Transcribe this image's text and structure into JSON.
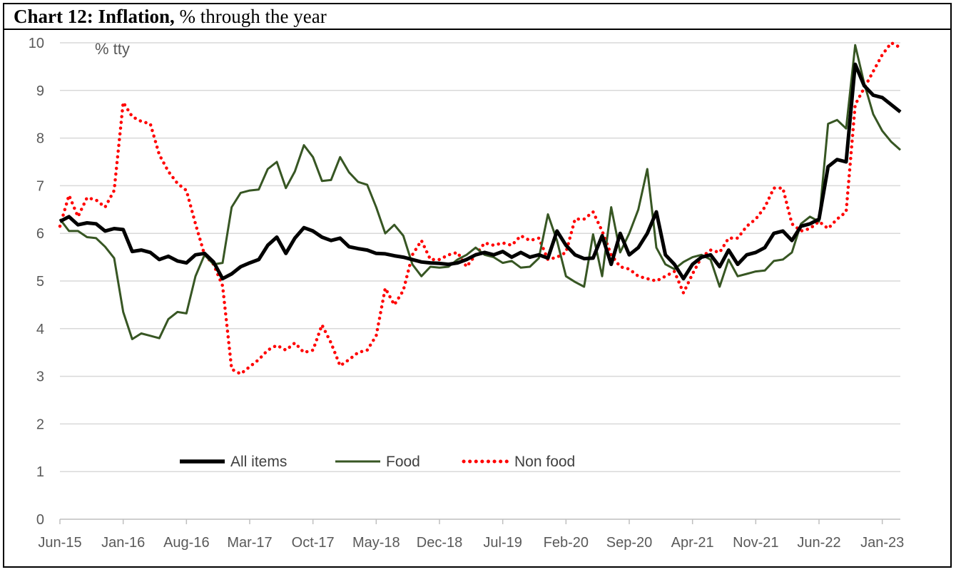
{
  "title": {
    "bold": "Chart 12: Inflation,",
    "rest": " % through the year"
  },
  "chart_data": {
    "type": "line",
    "unit_label": "% tty",
    "ylim": [
      0,
      10
    ],
    "y_ticks": [
      "0",
      "1",
      "2",
      "3",
      "4",
      "5",
      "6",
      "7",
      "8",
      "9",
      "10"
    ],
    "x_tick_labels": [
      "Jun-15",
      "Jan-16",
      "Aug-16",
      "Mar-17",
      "Oct-17",
      "May-18",
      "Dec-18",
      "Jul-19",
      "Feb-20",
      "Sep-20",
      "Apr-21",
      "Nov-21",
      "Jun-22",
      "Jan-23"
    ],
    "x_start": "Jun-15",
    "grid": true,
    "legend_position": "bottom-left",
    "colors": {
      "all_items": "#000000",
      "food": "#375623",
      "non_food": "#ff0000"
    },
    "series": [
      {
        "name": "All items",
        "style": "solid-thick",
        "values": [
          6.25,
          6.35,
          6.18,
          6.22,
          6.2,
          6.05,
          6.1,
          6.08,
          5.62,
          5.65,
          5.6,
          5.45,
          5.52,
          5.42,
          5.38,
          5.55,
          5.58,
          5.4,
          5.05,
          5.15,
          5.3,
          5.38,
          5.45,
          5.75,
          5.92,
          5.58,
          5.9,
          6.12,
          6.05,
          5.92,
          5.85,
          5.9,
          5.72,
          5.68,
          5.65,
          5.58,
          5.57,
          5.53,
          5.5,
          5.45,
          5.4,
          5.38,
          5.37,
          5.35,
          5.38,
          5.45,
          5.55,
          5.6,
          5.55,
          5.62,
          5.5,
          5.6,
          5.5,
          5.55,
          5.48,
          6.05,
          5.75,
          5.55,
          5.47,
          5.48,
          5.95,
          5.35,
          6.0,
          5.55,
          5.7,
          6.0,
          6.45,
          5.55,
          5.35,
          5.05,
          5.35,
          5.5,
          5.55,
          5.3,
          5.65,
          5.35,
          5.55,
          5.6,
          5.7,
          6.0,
          6.05,
          5.85,
          6.15,
          6.2,
          6.3,
          7.4,
          7.55,
          7.5,
          9.55,
          9.1,
          8.9,
          8.85,
          8.7,
          8.55
        ]
      },
      {
        "name": "Food",
        "style": "solid-thin",
        "values": [
          6.3,
          6.05,
          6.05,
          5.92,
          5.9,
          5.72,
          5.48,
          4.35,
          3.78,
          3.9,
          3.85,
          3.8,
          4.2,
          4.35,
          4.32,
          5.1,
          5.55,
          5.35,
          5.38,
          6.55,
          6.85,
          6.9,
          6.92,
          7.35,
          7.5,
          6.95,
          7.3,
          7.85,
          7.6,
          7.1,
          7.12,
          7.6,
          7.28,
          7.08,
          7.02,
          6.55,
          6.0,
          6.18,
          5.95,
          5.35,
          5.1,
          5.3,
          5.28,
          5.3,
          5.45,
          5.55,
          5.7,
          5.55,
          5.5,
          5.38,
          5.42,
          5.28,
          5.3,
          5.48,
          6.4,
          5.85,
          5.1,
          4.98,
          4.88,
          5.98,
          5.1,
          6.55,
          5.6,
          6.0,
          6.5,
          7.35,
          5.7,
          5.35,
          5.25,
          5.4,
          5.5,
          5.55,
          5.45,
          4.88,
          5.45,
          5.1,
          5.15,
          5.2,
          5.22,
          5.42,
          5.45,
          5.6,
          6.2,
          6.35,
          6.25,
          8.3,
          8.38,
          8.2,
          9.95,
          9.15,
          8.5,
          8.15,
          7.92,
          7.75
        ]
      },
      {
        "name": "Non food",
        "style": "dotted",
        "values": [
          6.15,
          6.8,
          6.35,
          6.75,
          6.7,
          6.55,
          6.9,
          8.75,
          8.45,
          8.35,
          8.3,
          7.65,
          7.3,
          7.05,
          6.9,
          6.2,
          5.55,
          5.35,
          4.9,
          3.15,
          3.05,
          3.2,
          3.35,
          3.55,
          3.65,
          3.55,
          3.7,
          3.5,
          3.55,
          4.08,
          3.7,
          3.22,
          3.35,
          3.5,
          3.55,
          3.85,
          4.85,
          4.5,
          4.8,
          5.55,
          5.85,
          5.45,
          5.45,
          5.55,
          5.6,
          5.3,
          5.55,
          5.8,
          5.75,
          5.8,
          5.75,
          5.95,
          5.85,
          5.9,
          5.45,
          5.5,
          5.6,
          6.3,
          6.3,
          6.45,
          6.05,
          5.55,
          5.3,
          5.25,
          5.1,
          5.05,
          5.0,
          5.1,
          5.2,
          4.75,
          5.15,
          5.5,
          5.65,
          5.6,
          5.9,
          5.9,
          6.15,
          6.3,
          6.55,
          6.95,
          6.95,
          6.2,
          6.05,
          6.1,
          6.25,
          6.1,
          6.3,
          6.45,
          8.7,
          9.05,
          9.4,
          9.75,
          10.0,
          9.9
        ]
      }
    ]
  }
}
